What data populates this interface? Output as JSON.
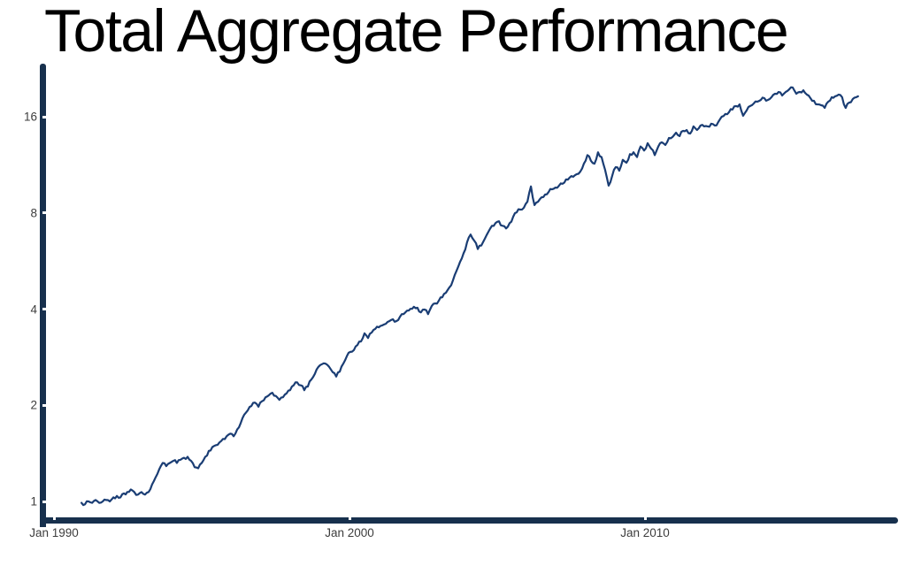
{
  "chart_data": {
    "type": "line",
    "title": "Total Aggregate Performance",
    "xlabel": "",
    "ylabel": "",
    "y_scale": "log2",
    "grid": false,
    "legend_position": "none",
    "xlim": [
      1989.6,
      2018.6
    ],
    "ylim": [
      0.9,
      22
    ],
    "y_ticks": [
      16,
      8,
      4,
      2,
      1
    ],
    "x_ticks": [
      {
        "label": "Jan 1990",
        "year": 1990
      },
      {
        "label": "Jan 2000",
        "year": 2000
      },
      {
        "label": "Jan 2010",
        "year": 2010
      }
    ],
    "colors": {
      "line": "#1a3d74",
      "axis": "#17304d",
      "tick_label": "#3d3d3d",
      "title": "#000000",
      "background": "#ffffff"
    },
    "series": [
      {
        "name": "total-aggregate-performance",
        "points": [
          [
            1990.93,
            0.99
          ],
          [
            1991.05,
            0.98
          ],
          [
            1991.17,
            1.0
          ],
          [
            1991.29,
            0.99
          ],
          [
            1991.41,
            1.01
          ],
          [
            1991.53,
            0.99
          ],
          [
            1991.65,
            1.0
          ],
          [
            1991.77,
            1.01
          ],
          [
            1991.89,
            1.0
          ],
          [
            1992.01,
            1.03
          ],
          [
            1992.13,
            1.04
          ],
          [
            1992.25,
            1.03
          ],
          [
            1992.37,
            1.06
          ],
          [
            1992.48,
            1.07
          ],
          [
            1992.6,
            1.09
          ],
          [
            1992.72,
            1.07
          ],
          [
            1992.84,
            1.05
          ],
          [
            1992.96,
            1.07
          ],
          [
            1993.08,
            1.05
          ],
          [
            1993.2,
            1.07
          ],
          [
            1993.32,
            1.13
          ],
          [
            1993.44,
            1.19
          ],
          [
            1993.56,
            1.26
          ],
          [
            1993.68,
            1.32
          ],
          [
            1993.8,
            1.29
          ],
          [
            1993.92,
            1.32
          ],
          [
            1994.04,
            1.34
          ],
          [
            1994.16,
            1.32
          ],
          [
            1994.28,
            1.35
          ],
          [
            1994.4,
            1.37
          ],
          [
            1994.52,
            1.38
          ],
          [
            1994.64,
            1.34
          ],
          [
            1994.76,
            1.28
          ],
          [
            1994.88,
            1.27
          ],
          [
            1995.0,
            1.32
          ],
          [
            1995.12,
            1.38
          ],
          [
            1995.24,
            1.44
          ],
          [
            1995.36,
            1.48
          ],
          [
            1995.48,
            1.5
          ],
          [
            1995.6,
            1.53
          ],
          [
            1995.72,
            1.57
          ],
          [
            1995.84,
            1.6
          ],
          [
            1995.96,
            1.63
          ],
          [
            1996.08,
            1.6
          ],
          [
            1996.2,
            1.68
          ],
          [
            1996.32,
            1.76
          ],
          [
            1996.44,
            1.87
          ],
          [
            1996.56,
            1.93
          ],
          [
            1996.68,
            1.99
          ],
          [
            1996.8,
            2.04
          ],
          [
            1996.92,
            1.98
          ],
          [
            1997.04,
            2.06
          ],
          [
            1997.16,
            2.12
          ],
          [
            1997.27,
            2.15
          ],
          [
            1997.39,
            2.19
          ],
          [
            1997.51,
            2.14
          ],
          [
            1997.63,
            2.08
          ],
          [
            1997.75,
            2.12
          ],
          [
            1997.87,
            2.18
          ],
          [
            1997.99,
            2.23
          ],
          [
            1998.11,
            2.31
          ],
          [
            1998.23,
            2.36
          ],
          [
            1998.35,
            2.31
          ],
          [
            1998.47,
            2.23
          ],
          [
            1998.59,
            2.29
          ],
          [
            1998.71,
            2.41
          ],
          [
            1998.83,
            2.51
          ],
          [
            1998.95,
            2.64
          ],
          [
            1999.07,
            2.69
          ],
          [
            1999.19,
            2.7
          ],
          [
            1999.31,
            2.64
          ],
          [
            1999.43,
            2.54
          ],
          [
            1999.55,
            2.46
          ],
          [
            1999.67,
            2.55
          ],
          [
            1999.79,
            2.7
          ],
          [
            1999.91,
            2.85
          ],
          [
            2000.03,
            2.94
          ],
          [
            2000.15,
            2.98
          ],
          [
            2000.27,
            3.09
          ],
          [
            2000.39,
            3.17
          ],
          [
            2000.51,
            3.36
          ],
          [
            2000.63,
            3.25
          ],
          [
            2000.75,
            3.38
          ],
          [
            2000.87,
            3.47
          ],
          [
            2000.99,
            3.51
          ],
          [
            2001.11,
            3.56
          ],
          [
            2001.23,
            3.6
          ],
          [
            2001.35,
            3.67
          ],
          [
            2001.47,
            3.72
          ],
          [
            2001.59,
            3.67
          ],
          [
            2001.71,
            3.79
          ],
          [
            2001.83,
            3.86
          ],
          [
            2001.95,
            3.96
          ],
          [
            2002.06,
            4.01
          ],
          [
            2002.18,
            4.07
          ],
          [
            2002.3,
            4.04
          ],
          [
            2002.42,
            3.91
          ],
          [
            2002.54,
            3.99
          ],
          [
            2002.66,
            3.86
          ],
          [
            2002.78,
            4.09
          ],
          [
            2002.9,
            4.17
          ],
          [
            2003.02,
            4.25
          ],
          [
            2003.14,
            4.36
          ],
          [
            2003.26,
            4.5
          ],
          [
            2003.38,
            4.68
          ],
          [
            2003.5,
            4.92
          ],
          [
            2003.62,
            5.27
          ],
          [
            2003.74,
            5.62
          ],
          [
            2003.86,
            5.98
          ],
          [
            2003.98,
            6.48
          ],
          [
            2004.1,
            6.85
          ],
          [
            2004.22,
            6.56
          ],
          [
            2004.34,
            6.17
          ],
          [
            2004.46,
            6.33
          ],
          [
            2004.58,
            6.65
          ],
          [
            2004.7,
            6.99
          ],
          [
            2004.82,
            7.3
          ],
          [
            2004.94,
            7.44
          ],
          [
            2005.06,
            7.54
          ],
          [
            2005.18,
            7.3
          ],
          [
            2005.3,
            7.16
          ],
          [
            2005.42,
            7.44
          ],
          [
            2005.54,
            7.79
          ],
          [
            2005.66,
            8.04
          ],
          [
            2005.78,
            8.2
          ],
          [
            2005.9,
            8.31
          ],
          [
            2006.02,
            8.68
          ],
          [
            2006.14,
            9.69
          ],
          [
            2006.26,
            8.47
          ],
          [
            2006.38,
            8.68
          ],
          [
            2006.5,
            8.96
          ],
          [
            2006.62,
            9.14
          ],
          [
            2006.74,
            9.31
          ],
          [
            2006.85,
            9.49
          ],
          [
            2006.97,
            9.61
          ],
          [
            2007.09,
            9.75
          ],
          [
            2007.21,
            9.88
          ],
          [
            2007.33,
            10.2
          ],
          [
            2007.45,
            10.33
          ],
          [
            2007.57,
            10.39
          ],
          [
            2007.69,
            10.59
          ],
          [
            2007.81,
            10.79
          ],
          [
            2007.93,
            11.42
          ],
          [
            2008.05,
            12.15
          ],
          [
            2008.17,
            11.66
          ],
          [
            2008.29,
            11.42
          ],
          [
            2008.41,
            12.4
          ],
          [
            2008.53,
            11.98
          ],
          [
            2008.65,
            10.93
          ],
          [
            2008.77,
            9.75
          ],
          [
            2008.89,
            10.46
          ],
          [
            2009.01,
            11.14
          ],
          [
            2009.13,
            10.86
          ],
          [
            2009.25,
            11.74
          ],
          [
            2009.37,
            11.5
          ],
          [
            2009.49,
            12.23
          ],
          [
            2009.61,
            12.4
          ],
          [
            2009.73,
            11.98
          ],
          [
            2009.85,
            12.92
          ],
          [
            2009.97,
            12.56
          ],
          [
            2010.09,
            13.24
          ],
          [
            2010.21,
            12.73
          ],
          [
            2010.33,
            12.15
          ],
          [
            2010.45,
            12.92
          ],
          [
            2010.57,
            13.32
          ],
          [
            2010.69,
            13.07
          ],
          [
            2010.81,
            13.75
          ],
          [
            2010.93,
            13.84
          ],
          [
            2011.05,
            14.28
          ],
          [
            2011.17,
            13.93
          ],
          [
            2011.29,
            14.47
          ],
          [
            2011.41,
            14.56
          ],
          [
            2011.53,
            14.19
          ],
          [
            2011.64,
            14.94
          ],
          [
            2011.76,
            14.56
          ],
          [
            2011.88,
            15.04
          ],
          [
            2012.0,
            14.94
          ],
          [
            2012.12,
            14.94
          ],
          [
            2012.24,
            15.23
          ],
          [
            2012.36,
            15.04
          ],
          [
            2012.48,
            15.42
          ],
          [
            2012.6,
            16.03
          ],
          [
            2012.72,
            16.34
          ],
          [
            2012.84,
            16.55
          ],
          [
            2012.96,
            16.87
          ],
          [
            2013.08,
            17.3
          ],
          [
            2013.2,
            17.52
          ],
          [
            2013.32,
            16.13
          ],
          [
            2013.44,
            16.76
          ],
          [
            2013.56,
            17.3
          ],
          [
            2013.68,
            17.63
          ],
          [
            2013.8,
            17.86
          ],
          [
            2013.92,
            18.08
          ],
          [
            2014.04,
            18.32
          ],
          [
            2014.16,
            18.08
          ],
          [
            2014.28,
            18.44
          ],
          [
            2014.4,
            18.91
          ],
          [
            2014.52,
            19.15
          ],
          [
            2014.64,
            18.67
          ],
          [
            2014.76,
            19.15
          ],
          [
            2014.88,
            19.52
          ],
          [
            2015.0,
            19.77
          ],
          [
            2015.12,
            18.91
          ],
          [
            2015.24,
            19.15
          ],
          [
            2015.36,
            19.39
          ],
          [
            2015.48,
            18.79
          ],
          [
            2015.6,
            18.32
          ],
          [
            2015.72,
            17.97
          ],
          [
            2015.84,
            17.52
          ],
          [
            2015.96,
            17.41
          ],
          [
            2016.08,
            17.08
          ],
          [
            2016.2,
            17.86
          ],
          [
            2016.32,
            18.44
          ],
          [
            2016.43,
            18.56
          ],
          [
            2016.55,
            18.79
          ],
          [
            2016.67,
            18.44
          ],
          [
            2016.79,
            17.08
          ],
          [
            2016.91,
            17.74
          ],
          [
            2017.03,
            18.2
          ],
          [
            2017.15,
            18.44
          ],
          [
            2017.21,
            18.56
          ]
        ]
      }
    ]
  }
}
